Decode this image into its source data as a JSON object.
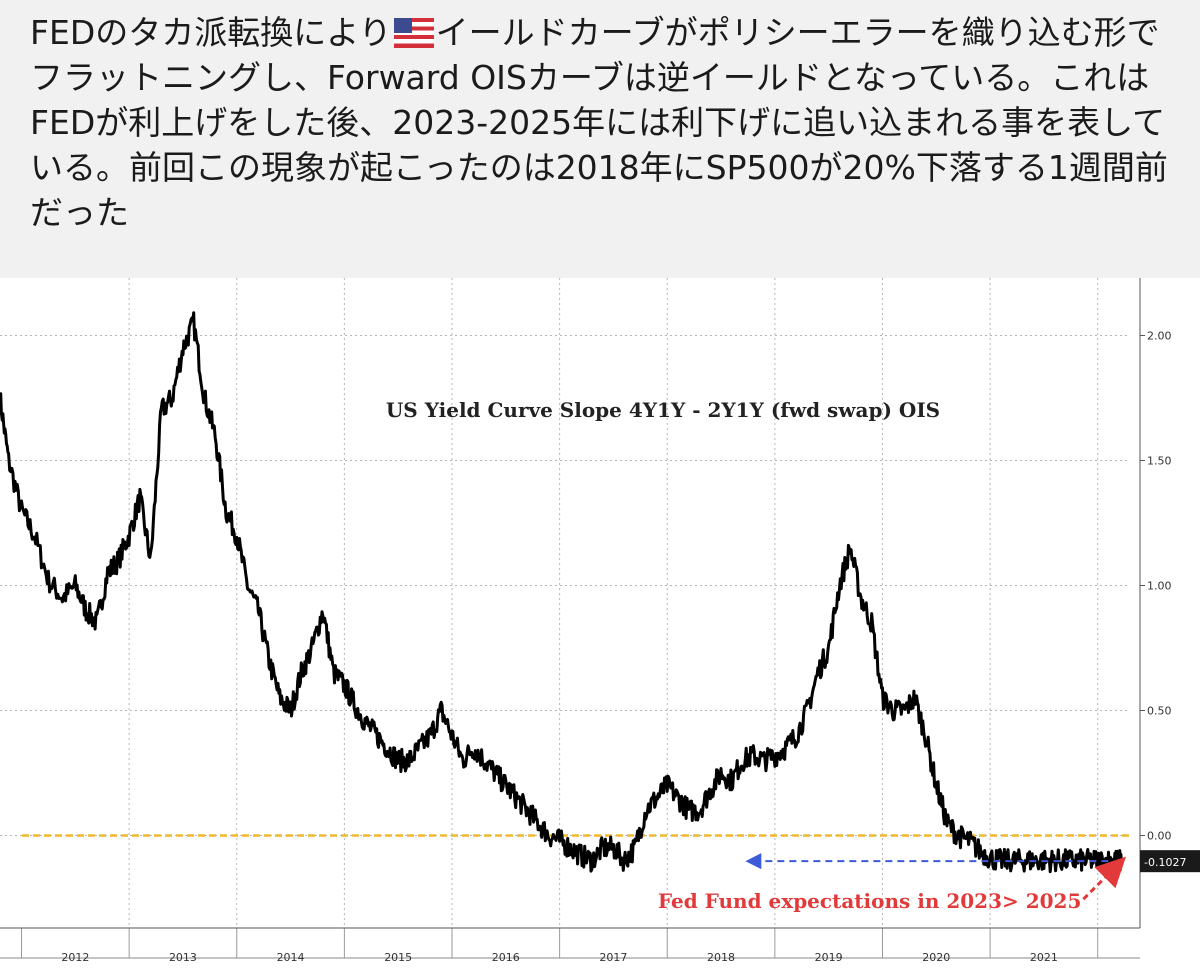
{
  "tweet": {
    "text_before_flag": "FEDのタカ派転換により",
    "flag_icon": "us-flag-icon",
    "text_after_flag": "イールドカーブがポリシーエラーを織り込む形でフラットニングし、Forward OISカーブは逆イールドとなっている。これはFEDが利上げをした後、2023-2025年には利下げに追い込まれる事を表している。前回この現象が起こったのは2018年にSP500が20%下落する1週間前だった"
  },
  "chart_data": {
    "type": "line",
    "title": "US Yield Curve Slope 4Y1Y - 2Y1Y (fwd swap) OIS",
    "xlabel": "",
    "ylabel": "",
    "x_ticks": [
      "2012",
      "2013",
      "2014",
      "2015",
      "2016",
      "2017",
      "2018",
      "2019",
      "2020",
      "2021"
    ],
    "y_ticks": [
      "0.00",
      "0.50",
      "1.00",
      "1.50",
      "2.00"
    ],
    "xlim": [
      2011.3,
      2021.8
    ],
    "ylim": [
      -0.37,
      2.23
    ],
    "grid": true,
    "zero_line": {
      "value": 0.0,
      "color": "#f2b731"
    },
    "last_value_label": "-0.1027",
    "annotation": {
      "text": "Fed Fund expectations in 2023> 2025",
      "color": "#e23a3a",
      "compare_from_x": 2018.3,
      "compare_value": -0.1027
    },
    "colors": {
      "series": "#000000",
      "arrow_blue": "#3d5bd9",
      "arrow_red": "#e23a3a"
    },
    "series": [
      {
        "x": [
          2011.3,
          2011.38,
          2011.5,
          2011.62,
          2011.75,
          2011.88,
          2012.0,
          2012.1,
          2012.2,
          2012.3,
          2012.4,
          2012.5,
          2012.6,
          2012.7,
          2012.8,
          2012.9,
          2013.0,
          2013.1,
          2013.2,
          2013.3,
          2013.4,
          2013.5,
          2013.6,
          2013.7,
          2013.8,
          2013.9,
          2014.0,
          2014.1,
          2014.2,
          2014.3,
          2014.4,
          2014.5,
          2014.6,
          2014.7,
          2014.8,
          2014.9,
          2015.0,
          2015.1,
          2015.2,
          2015.3,
          2015.4,
          2015.5,
          2015.6,
          2015.7,
          2015.8,
          2015.9,
          2016.0,
          2016.1,
          2016.2,
          2016.3,
          2016.4,
          2016.5,
          2016.6,
          2016.7,
          2016.8,
          2016.9,
          2017.0,
          2017.1,
          2017.2,
          2017.3,
          2017.4,
          2017.5,
          2017.6,
          2017.7,
          2017.8,
          2017.9,
          2018.0,
          2018.1,
          2018.2,
          2018.3,
          2018.4,
          2018.5,
          2018.6,
          2018.7,
          2018.8,
          2018.9,
          2019.0,
          2019.1,
          2019.2,
          2019.3,
          2019.4,
          2019.5,
          2019.6,
          2019.7,
          2019.8,
          2019.9,
          2020.0,
          2020.1,
          2020.2,
          2020.3,
          2020.4,
          2020.5,
          2020.6,
          2020.7,
          2020.8,
          2020.9,
          2021.0,
          2021.1,
          2021.2,
          2021.3,
          2021.4,
          2021.5,
          2021.6,
          2021.66,
          2021.72
        ],
        "values": [
          1.75,
          1.5,
          1.3,
          1.2,
          1.02,
          0.95,
          1.0,
          0.9,
          0.85,
          1.05,
          1.1,
          1.2,
          1.35,
          1.1,
          1.7,
          1.75,
          1.95,
          2.05,
          1.75,
          1.6,
          1.3,
          1.2,
          1.0,
          0.9,
          0.7,
          0.55,
          0.5,
          0.65,
          0.75,
          0.9,
          0.65,
          0.6,
          0.52,
          0.45,
          0.4,
          0.35,
          0.3,
          0.3,
          0.35,
          0.4,
          0.5,
          0.4,
          0.3,
          0.35,
          0.3,
          0.25,
          0.2,
          0.15,
          0.1,
          0.05,
          0.0,
          -0.02,
          -0.05,
          -0.08,
          -0.1,
          -0.05,
          -0.05,
          -0.1,
          -0.05,
          0.1,
          0.15,
          0.2,
          0.15,
          0.1,
          0.1,
          0.18,
          0.25,
          0.22,
          0.3,
          0.32,
          0.3,
          0.32,
          0.35,
          0.4,
          0.5,
          0.65,
          0.75,
          1.0,
          1.15,
          0.95,
          0.85,
          0.55,
          0.5,
          0.5,
          0.55,
          0.4,
          0.2,
          0.05,
          0.0,
          -0.02,
          -0.06,
          -0.09,
          -0.1,
          -0.1,
          -0.1,
          -0.1,
          -0.1,
          -0.1,
          -0.1,
          -0.1,
          -0.1,
          -0.1,
          -0.1,
          -0.1,
          -0.1027
        ]
      }
    ]
  }
}
